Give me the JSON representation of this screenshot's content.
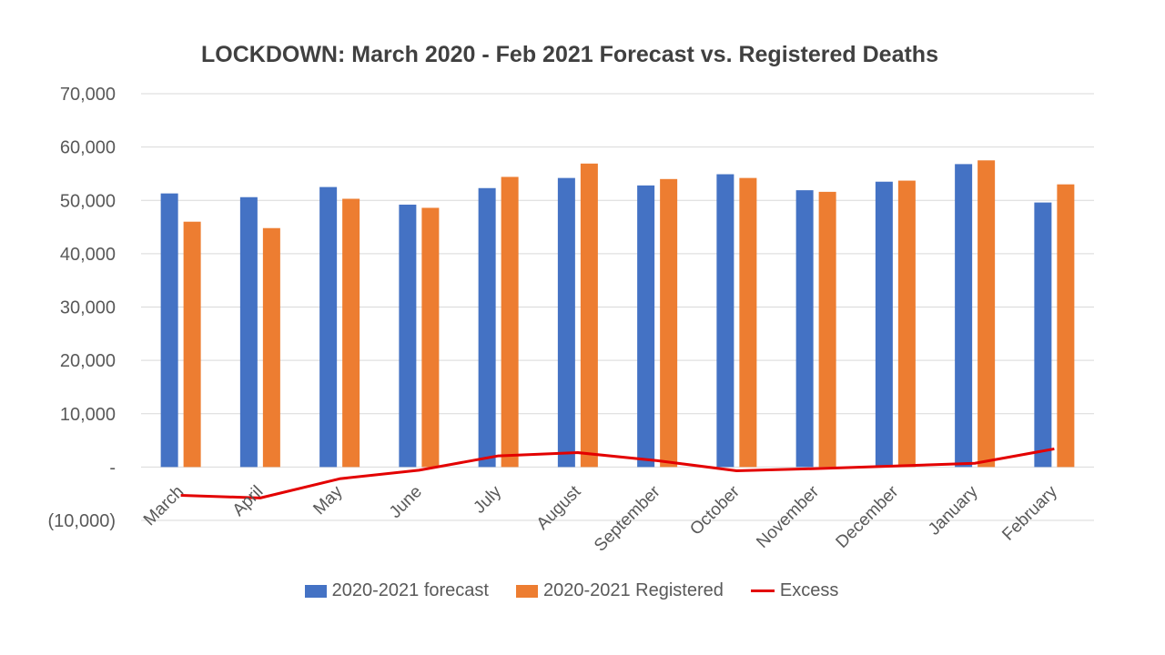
{
  "chart_data": {
    "type": "bar",
    "title": "LOCKDOWN: March 2020 - Feb 2021 Forecast vs. Registered Deaths",
    "categories": [
      "March",
      "April",
      "May",
      "June",
      "July",
      "August",
      "September",
      "October",
      "November",
      "December",
      "January",
      "February"
    ],
    "series": [
      {
        "name": "2020-2021 forecast",
        "type": "bar",
        "color": "#4472C4",
        "values": [
          51300,
          50600,
          52500,
          49200,
          52300,
          54200,
          52800,
          54900,
          51900,
          53500,
          56800,
          49600
        ]
      },
      {
        "name": "2020-2021 Registered",
        "type": "bar",
        "color": "#ED7D31",
        "values": [
          46000,
          44800,
          50300,
          48600,
          54400,
          56900,
          54000,
          54200,
          51600,
          53700,
          57500,
          53000
        ]
      },
      {
        "name": "Excess",
        "type": "line",
        "color": "#E30000",
        "values": [
          -5300,
          -5800,
          -2200,
          -600,
          2100,
          2700,
          1200,
          -700,
          -300,
          200,
          700,
          3400
        ]
      }
    ],
    "ylim": [
      -10000,
      70000
    ],
    "yticks": [
      -10000,
      0,
      10000,
      20000,
      30000,
      40000,
      50000,
      60000,
      70000
    ],
    "ytick_labels": [
      "(10,000)",
      "-",
      "10,000",
      "20,000",
      "30,000",
      "40,000",
      "50,000",
      "60,000",
      "70,000"
    ],
    "grid": true,
    "legend_position": "bottom"
  }
}
